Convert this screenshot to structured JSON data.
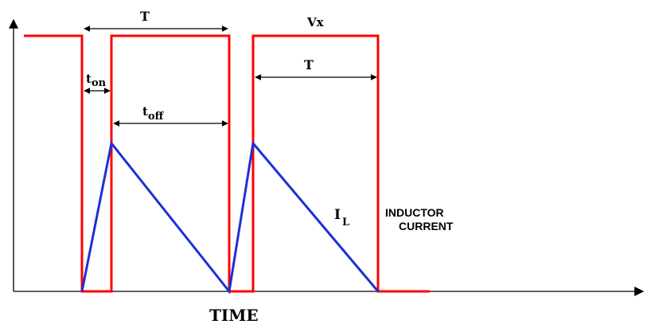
{
  "colors": {
    "voltage_wave": "#ff0000",
    "inductor_current": "#1f2fd6",
    "axes": "#000000",
    "text": "#000000"
  },
  "labels": {
    "period_top": "T",
    "period_right": "T",
    "vx": "Vx",
    "t_on_base": "t",
    "t_on_sub": "on",
    "t_off_base": "t",
    "t_off_sub": "off",
    "il_base": "I",
    "il_sub": "L",
    "inductor_line1": "INDUCTOR",
    "inductor_line2": "CURRENT",
    "x_axis_title": "TIME"
  }
}
